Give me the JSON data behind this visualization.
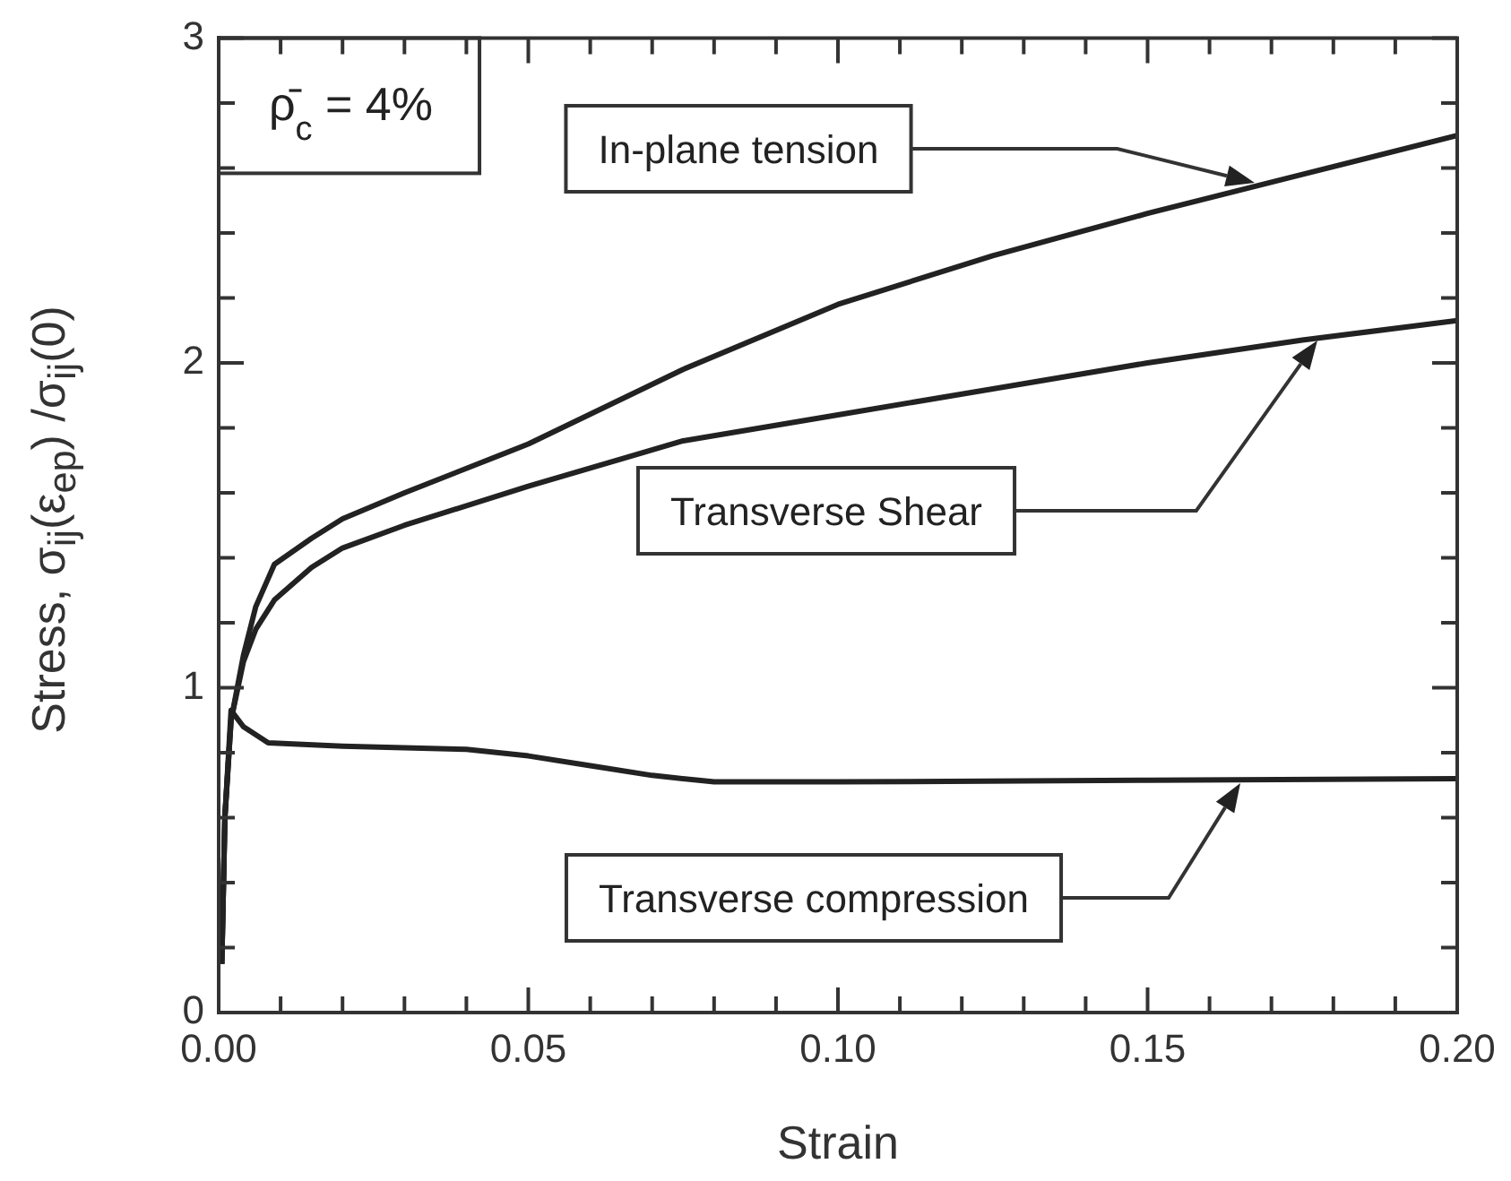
{
  "chart_data": {
    "type": "line",
    "xlabel": "Strain",
    "ylabel": "Stress, σ$_{ij}$(ε$_{ep}$) /σ$_{ij}$(0)",
    "xlim": [
      0,
      0.2
    ],
    "ylim": [
      0,
      3
    ],
    "xticks": [
      {
        "value": 0,
        "label": "0.00"
      },
      {
        "value": 0.01,
        "label": null
      },
      {
        "value": 0.02,
        "label": null
      },
      {
        "value": 0.03,
        "label": null
      },
      {
        "value": 0.04,
        "label": null
      },
      {
        "value": 0.05,
        "label": "0.05"
      },
      {
        "value": 0.06,
        "label": null
      },
      {
        "value": 0.07,
        "label": null
      },
      {
        "value": 0.08,
        "label": null
      },
      {
        "value": 0.09,
        "label": null
      },
      {
        "value": 0.1,
        "label": "0.10"
      },
      {
        "value": 0.11,
        "label": null
      },
      {
        "value": 0.12,
        "label": null
      },
      {
        "value": 0.13,
        "label": null
      },
      {
        "value": 0.14,
        "label": null
      },
      {
        "value": 0.15,
        "label": "0.15"
      },
      {
        "value": 0.16,
        "label": null
      },
      {
        "value": 0.17,
        "label": null
      },
      {
        "value": 0.18,
        "label": null
      },
      {
        "value": 0.19,
        "label": null
      },
      {
        "value": 0.2,
        "label": "0.20"
      }
    ],
    "yticks": [
      0,
      {
        "value": 0.2,
        "label": null
      },
      {
        "value": 0.4,
        "label": null
      },
      {
        "value": 0.6,
        "label": null
      },
      {
        "value": 0.8,
        "label": null
      },
      1,
      {
        "value": 1.2,
        "label": null
      },
      {
        "value": 1.4,
        "label": null
      },
      {
        "value": 1.6,
        "label": null
      },
      {
        "value": 1.8,
        "label": null
      },
      2,
      {
        "value": 2.2,
        "label": null
      },
      {
        "value": 2.4,
        "label": null
      },
      {
        "value": 2.6,
        "label": null
      },
      {
        "value": 2.8,
        "label": null
      },
      3
    ],
    "grid": false,
    "legend": false,
    "marker": "none",
    "line_style": "solid",
    "series": [
      {
        "color": "#222222",
        "x": [
          0.0005,
          0.001,
          0.002,
          0.004,
          0.006,
          0.009,
          0.015,
          0.02,
          0.03,
          0.05,
          0.075,
          0.1,
          0.125,
          0.15,
          0.175,
          0.2
        ],
        "values": [
          0.15,
          0.6,
          0.9,
          1.1,
          1.25,
          1.38,
          1.46,
          1.52,
          1.6,
          1.75,
          1.98,
          2.18,
          2.33,
          2.46,
          2.58,
          2.7
        ]
      },
      {
        "color": "#222222",
        "x": [
          0.0005,
          0.001,
          0.002,
          0.004,
          0.006,
          0.009,
          0.015,
          0.02,
          0.03,
          0.05,
          0.075,
          0.1,
          0.125,
          0.15,
          0.175,
          0.2
        ],
        "values": [
          0.15,
          0.6,
          0.9,
          1.08,
          1.18,
          1.27,
          1.37,
          1.43,
          1.5,
          1.62,
          1.76,
          1.84,
          1.92,
          2.0,
          2.07,
          2.13
        ]
      },
      {
        "color": "#222222",
        "x": [
          0.0005,
          0.001,
          0.002,
          0.004,
          0.008,
          0.02,
          0.04,
          0.05,
          0.06,
          0.07,
          0.08,
          0.1,
          0.15,
          0.2
        ],
        "values": [
          0.15,
          0.6,
          0.93,
          0.88,
          0.83,
          0.82,
          0.81,
          0.79,
          0.76,
          0.73,
          0.71,
          0.71,
          0.715,
          0.72
        ]
      }
    ],
    "annotations": [
      "ρ̄$_{c}$ = 4%",
      "In-plane tension",
      "Transverse Shear",
      "Transverse compression"
    ]
  }
}
